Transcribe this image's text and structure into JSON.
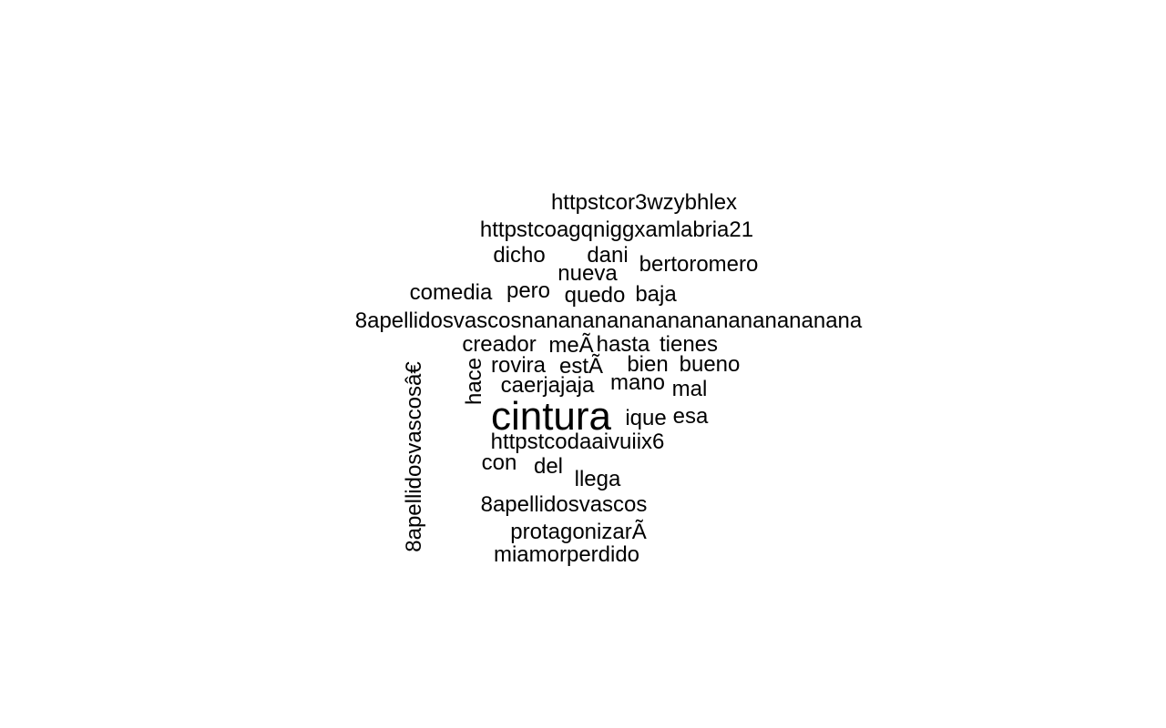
{
  "words": {
    "w_httpstcor3wzybhlex": "httpstcor3wzybhlex",
    "w_httpstcoagqniggxamlabria21": "httpstcoagqniggxamlabria21",
    "w_dicho": "dicho",
    "w_dani": "dani",
    "w_nueva": "nueva",
    "w_bertoromero": "bertoromero",
    "w_comedia": "comedia",
    "w_pero": "pero",
    "w_quedo": "quedo",
    "w_baja": "baja",
    "w_8apellidosvascosnana": "8apellidosvascosnananananananananananananana",
    "w_creador": "creador",
    "w_me": "meÃ",
    "w_hasta": "hasta",
    "w_tienes": "tienes",
    "w_8apellidosvascosae": "8apellidosvascosâ€",
    "w_hace": "hace",
    "w_rovira": "rovira",
    "w_esta": "estÃ",
    "w_bien": "bien",
    "w_bueno": "bueno",
    "w_caerjajaja": "caerjajaja",
    "w_mano": "mano",
    "w_mal": "mal",
    "w_cintura": "cintura",
    "w_ique": "ique",
    "w_esa": "esa",
    "w_httpstcodaaivuiix6": "httpstcodaaivuiix6",
    "w_con": "con",
    "w_del": "del",
    "w_llega": "llega",
    "w_8apellidosvascos": "8apellidosvascos",
    "w_protagonizara": "protagonizarÃ",
    "w_miamorperdido": "miamorperdido"
  }
}
